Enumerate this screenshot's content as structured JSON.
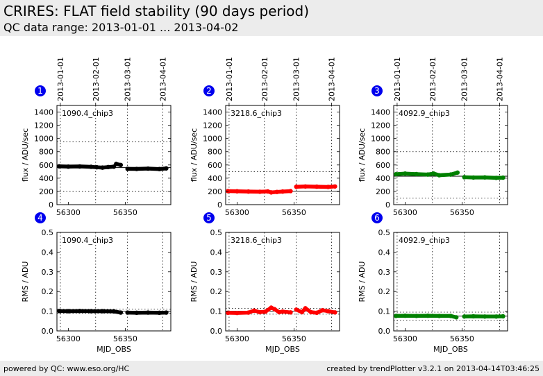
{
  "header": {
    "title": "CRIRES: FLAT field stability (90 days period)",
    "subtitle": "QC data range: 2013-01-01 ... 2013-04-02"
  },
  "footer": {
    "left": "powered by QC: www.eso.org/HC",
    "right": "created by trendPlotter v3.2.1 on 2013-04-14T03:46:25"
  },
  "chart_data": [
    {
      "type": "scatter",
      "panel": "1",
      "label": "1090.4_chip3",
      "color": "#000000",
      "ylabel": "flux / ADU/sec",
      "ylim": [
        0,
        1500
      ],
      "yticks": [
        0,
        200,
        400,
        600,
        800,
        1000,
        1200,
        1400
      ],
      "xlim": [
        56290,
        56390
      ],
      "xticks": [
        56300,
        56350
      ],
      "date_ticks": [
        "2013-01-01",
        "2013-02-01",
        "2013-03-01",
        "2013-04-01"
      ],
      "mean": 560,
      "limits": [
        200,
        950
      ],
      "series": [
        {
          "x": [
            56292,
            56300,
            56310,
            56320,
            56325,
            56330,
            56335,
            56340
          ],
          "y": [
            580,
            575,
            578,
            572,
            565,
            560,
            568,
            575
          ]
        },
        {
          "x": [
            56342,
            56346
          ],
          "y": [
            615,
            600
          ]
        },
        {
          "x": [
            56352,
            56360,
            56370,
            56380,
            56386
          ],
          "y": [
            542,
            540,
            545,
            538,
            548
          ]
        }
      ]
    },
    {
      "type": "scatter",
      "panel": "2",
      "label": "3218.6_chip3",
      "color": "#ff0000",
      "ylabel": "flux / ADU/sec",
      "ylim": [
        0,
        1500
      ],
      "yticks": [
        0,
        200,
        400,
        600,
        800,
        1000,
        1200,
        1400
      ],
      "xlim": [
        56290,
        56390
      ],
      "xticks": [
        56300,
        56350
      ],
      "date_ticks": [
        "2013-01-01",
        "2013-02-01",
        "2013-03-01",
        "2013-04-01"
      ],
      "mean": 205,
      "limits": [
        0,
        500
      ],
      "series": [
        {
          "x": [
            56292,
            56300,
            56310,
            56320,
            56327,
            56330,
            56335,
            56340,
            56347
          ],
          "y": [
            205,
            202,
            198,
            195,
            200,
            185,
            192,
            198,
            205
          ]
        },
        {
          "x": [
            56352,
            56360,
            56370,
            56380,
            56386
          ],
          "y": [
            270,
            275,
            272,
            268,
            275
          ]
        }
      ]
    },
    {
      "type": "scatter",
      "panel": "3",
      "label": "4092.9_chip3",
      "color": "#008000",
      "ylabel": "flux / ADU/sec",
      "ylim": [
        0,
        1500
      ],
      "yticks": [
        0,
        200,
        400,
        600,
        800,
        1000,
        1200,
        1400
      ],
      "xlim": [
        56290,
        56390
      ],
      "xticks": [
        56300,
        56350
      ],
      "date_ticks": [
        "2013-01-01",
        "2013-02-01",
        "2013-03-01",
        "2013-04-01"
      ],
      "mean": 430,
      "limits": [
        100,
        800
      ],
      "series": [
        {
          "x": [
            56292,
            56300,
            56310,
            56320,
            56325,
            56330,
            56340,
            56346
          ],
          "y": [
            460,
            470,
            462,
            455,
            470,
            445,
            455,
            485
          ]
        },
        {
          "x": [
            56352,
            56360,
            56370,
            56380,
            56386
          ],
          "y": [
            415,
            410,
            412,
            405,
            408
          ]
        }
      ]
    },
    {
      "type": "scatter",
      "panel": "4",
      "label": "1090.4_chip3",
      "color": "#000000",
      "xlabel": "MJD_OBS",
      "ylabel": "RMS / ADU",
      "ylim": [
        0,
        0.5
      ],
      "yticks": [
        0.0,
        0.1,
        0.2,
        0.3,
        0.4,
        0.5
      ],
      "xlim": [
        56290,
        56390
      ],
      "xticks": [
        56300,
        56350
      ],
      "mean": 0.1,
      "limits": [
        0.09,
        0.11
      ],
      "series": [
        {
          "x": [
            56292,
            56300,
            56310,
            56320,
            56330,
            56340,
            56346
          ],
          "y": [
            0.101,
            0.1,
            0.101,
            0.1,
            0.1,
            0.099,
            0.093
          ]
        },
        {
          "x": [
            56352,
            56360,
            56370,
            56380,
            56386
          ],
          "y": [
            0.093,
            0.092,
            0.093,
            0.092,
            0.093
          ]
        }
      ]
    },
    {
      "type": "scatter",
      "panel": "5",
      "label": "3218.6_chip3",
      "color": "#ff0000",
      "xlabel": "MJD_OBS",
      "ylabel": "RMS / ADU",
      "ylim": [
        0,
        0.5
      ],
      "yticks": [
        0.0,
        0.1,
        0.2,
        0.3,
        0.4,
        0.5
      ],
      "xlim": [
        56290,
        56390
      ],
      "xticks": [
        56300,
        56350
      ],
      "mean": 0.1,
      "limits": [
        0.085,
        0.115
      ],
      "series": [
        {
          "x": [
            56292,
            56300,
            56310,
            56315,
            56320,
            56325,
            56330,
            56333,
            56337,
            56340,
            56347
          ],
          "y": [
            0.092,
            0.091,
            0.093,
            0.103,
            0.095,
            0.098,
            0.118,
            0.11,
            0.095,
            0.098,
            0.094
          ]
        },
        {
          "x": [
            56352,
            56357,
            56360,
            56365,
            56370,
            56375,
            56380,
            56386
          ],
          "y": [
            0.108,
            0.095,
            0.115,
            0.095,
            0.092,
            0.105,
            0.1,
            0.094
          ]
        }
      ]
    },
    {
      "type": "scatter",
      "panel": "6",
      "label": "4092.9_chip3",
      "color": "#008000",
      "xlabel": "MJD_OBS",
      "ylabel": "RMS / ADU",
      "ylim": [
        0,
        0.5
      ],
      "yticks": [
        0.0,
        0.1,
        0.2,
        0.3,
        0.4,
        0.5
      ],
      "xlim": [
        56290,
        56390
      ],
      "xticks": [
        56300,
        56350
      ],
      "mean": 0.075,
      "limits": [
        0.055,
        0.095
      ],
      "series": [
        {
          "x": [
            56292,
            56300,
            56310,
            56320,
            56330,
            56340,
            56345
          ],
          "y": [
            0.076,
            0.077,
            0.076,
            0.077,
            0.076,
            0.076,
            0.069
          ]
        },
        {
          "x": [
            56352,
            56360,
            56370,
            56380,
            56386
          ],
          "y": [
            0.073,
            0.074,
            0.073,
            0.073,
            0.074
          ]
        }
      ]
    }
  ]
}
